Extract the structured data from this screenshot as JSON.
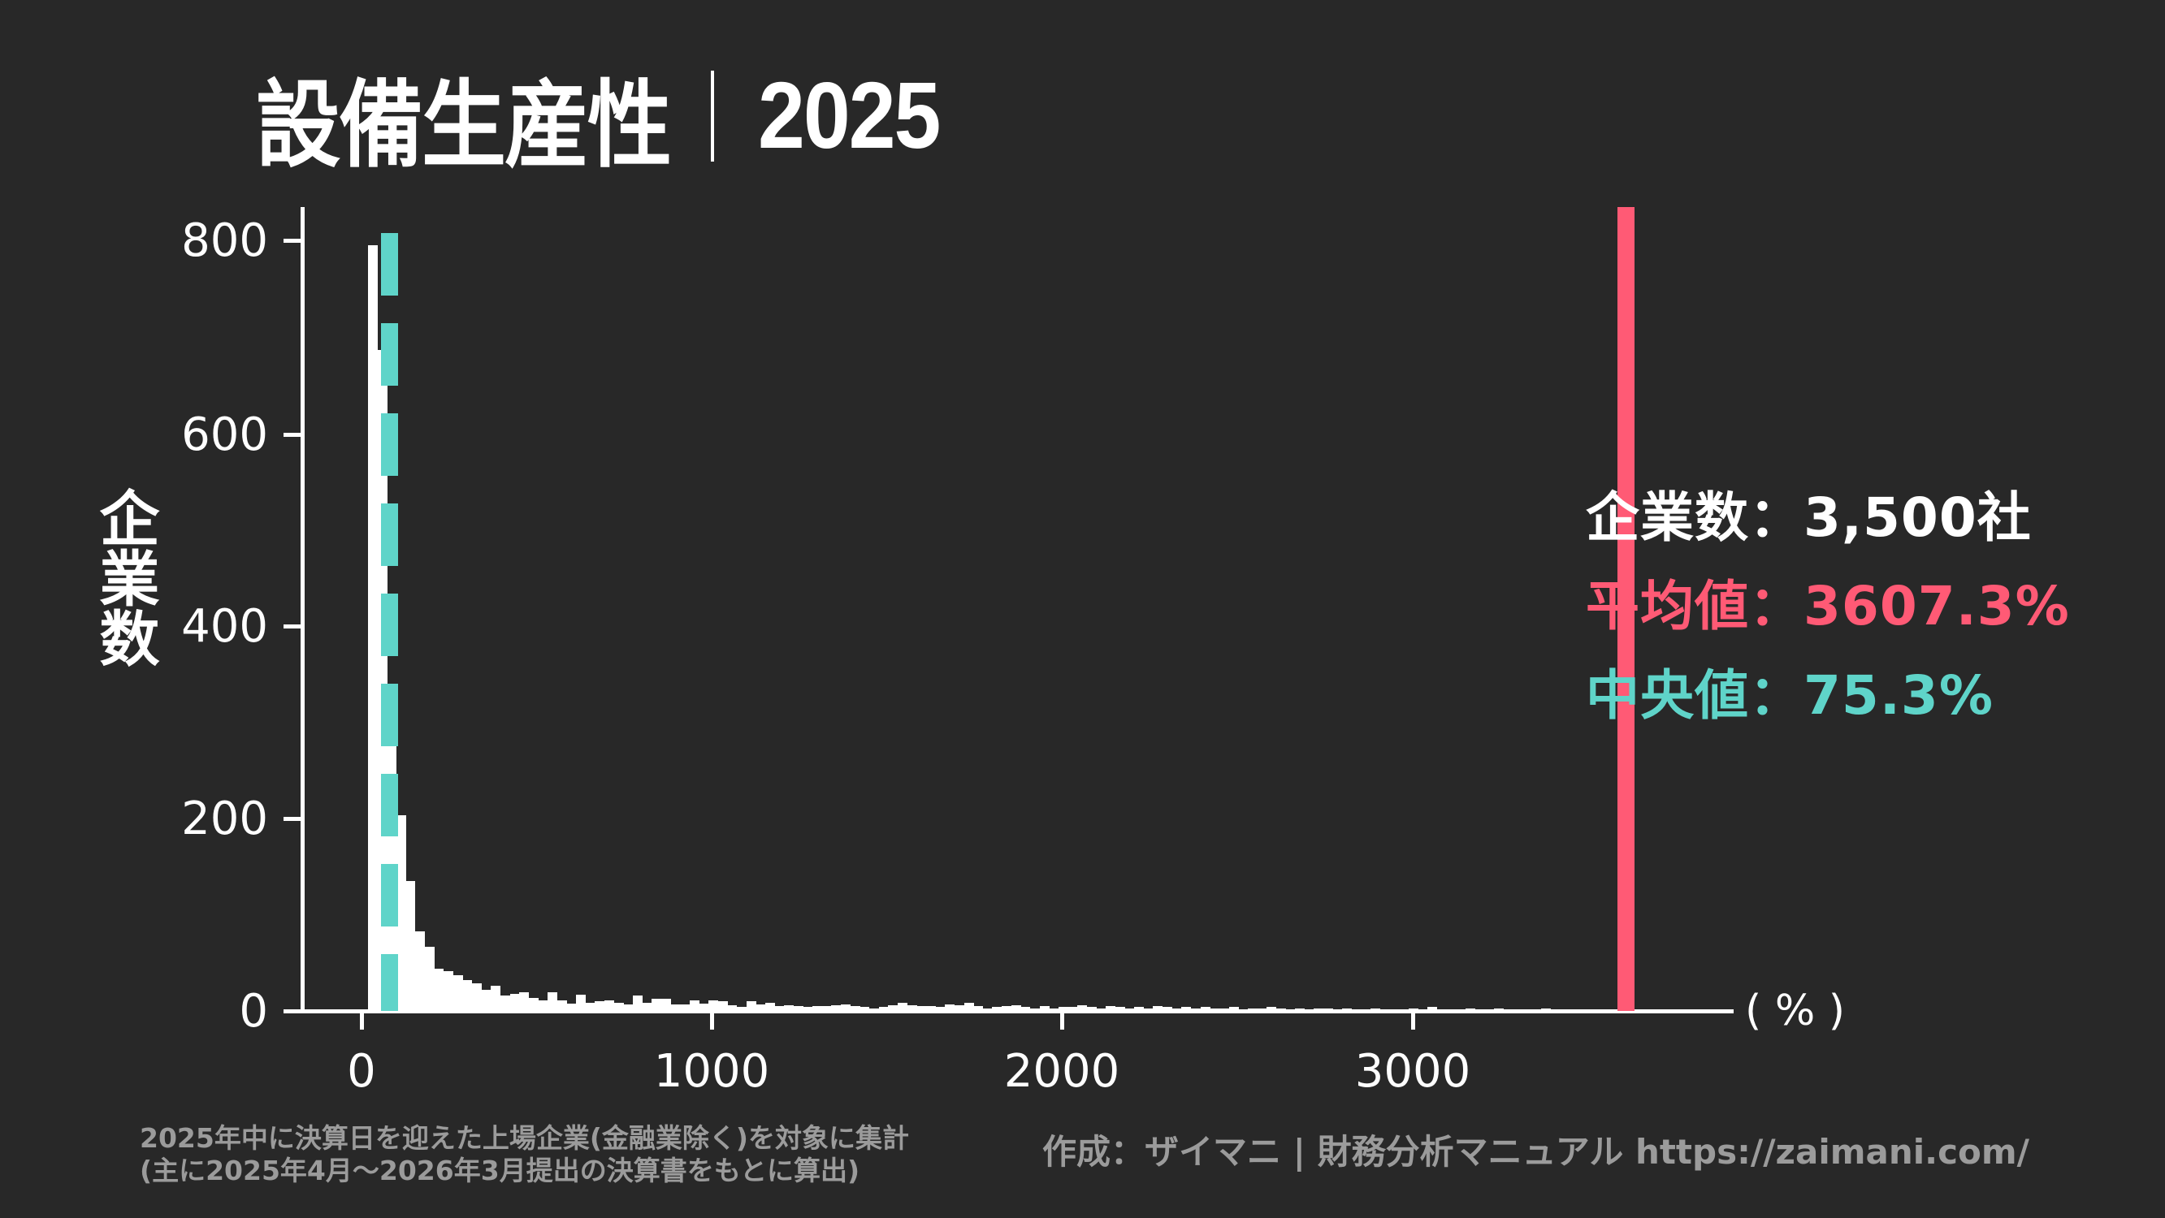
{
  "title": {
    "main": "設備生産性",
    "year": "2025"
  },
  "axes": {
    "ylabel": "企業数",
    "xunit": "( % )",
    "yticks": [
      "0",
      "200",
      "400",
      "600",
      "800"
    ],
    "xticks": [
      "0",
      "1000",
      "2000",
      "3000"
    ]
  },
  "stats": {
    "count": "企業数：3,500社",
    "mean": "平均値：3607.3%",
    "median": "中央値：75.3%"
  },
  "colors": {
    "background": "#282828",
    "bars": "#ffffff",
    "mean": "#ff5a75",
    "median": "#5fd4c9",
    "footer": "#9b9b9b"
  },
  "footer": {
    "note_line1": "2025年中に決算日を迎えた上場企業(金融業除く)を対象に集計",
    "note_line2": "(主に2025年4月〜2026年3月提出の決算書をもとに算出)",
    "credit": "作成：ザイマニ | 財務分析マニュアル https://zaimani.com/"
  },
  "chart_data": {
    "type": "bar",
    "title": "設備生産性｜2025",
    "xlabel": "%",
    "ylabel": "企業数",
    "xlim": [
      -220,
      3870
    ],
    "ylim": [
      0,
      835
    ],
    "xticks": [
      0,
      1000,
      2000,
      3000
    ],
    "yticks": [
      0,
      200,
      400,
      600,
      800
    ],
    "grid": false,
    "bin_start": 17,
    "bin_width": 27,
    "values": [
      796,
      687,
      278,
      203,
      134,
      82,
      66,
      43,
      41,
      36,
      31,
      28,
      21,
      25,
      15,
      17,
      19,
      13,
      10,
      19,
      10,
      7,
      16,
      8,
      9,
      10,
      8,
      6,
      15,
      8,
      12,
      12,
      6,
      6,
      10,
      7,
      10,
      9,
      5,
      3,
      9,
      6,
      8,
      4,
      5,
      4,
      3,
      4,
      4,
      5,
      6,
      4,
      3,
      2,
      3,
      5,
      8,
      5,
      4,
      4,
      3,
      6,
      5,
      8,
      4,
      2,
      3,
      4,
      5,
      3,
      2,
      4,
      2,
      3,
      3,
      5,
      3,
      2,
      4,
      3,
      2,
      3,
      2,
      4,
      3,
      2,
      3,
      2,
      3,
      2,
      2,
      3,
      1,
      2,
      2,
      3,
      2,
      1,
      2,
      1,
      2,
      2,
      1,
      2,
      1,
      1,
      2,
      1,
      1,
      1,
      2,
      1,
      3,
      1,
      1,
      1,
      2,
      1,
      1,
      2,
      1,
      0,
      1,
      1,
      2,
      1,
      1
    ],
    "annotations": {
      "count": 3500,
      "mean": 3607.3,
      "median": 75.3
    }
  }
}
